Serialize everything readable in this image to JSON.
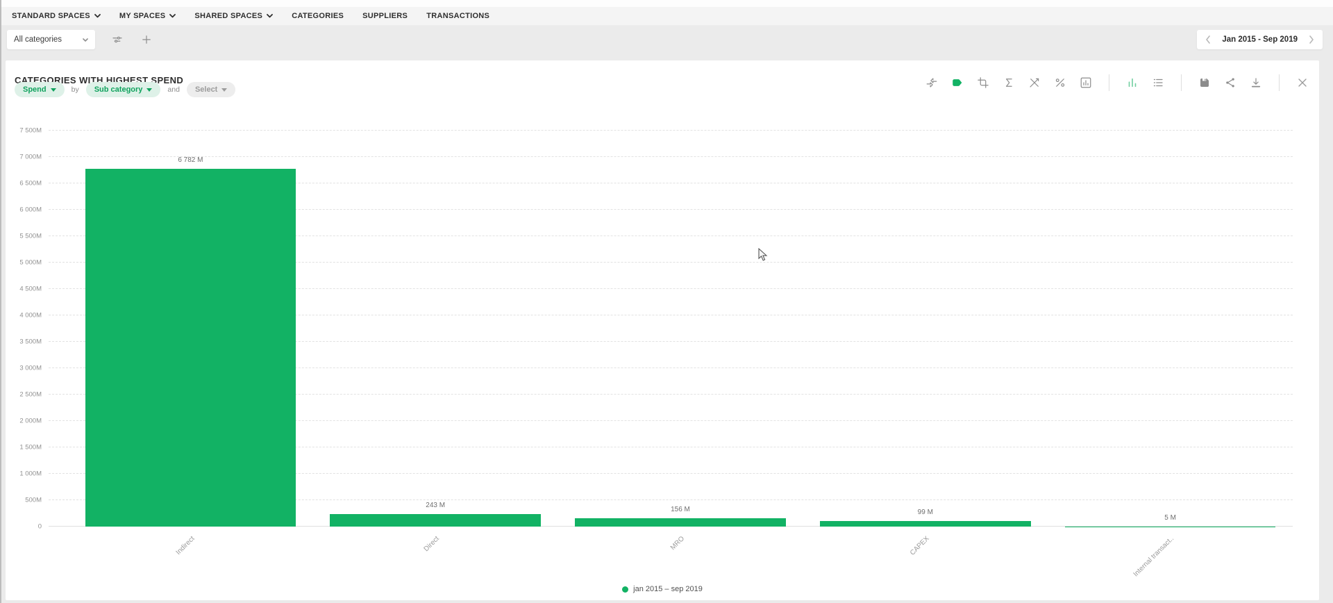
{
  "nav": {
    "items": [
      {
        "label": "STANDARD SPACES",
        "has_dropdown": true
      },
      {
        "label": "MY SPACES",
        "has_dropdown": true
      },
      {
        "label": "SHARED SPACES",
        "has_dropdown": true
      },
      {
        "label": "CATEGORIES",
        "has_dropdown": false
      },
      {
        "label": "SUPPLIERS",
        "has_dropdown": false
      },
      {
        "label": "TRANSACTIONS",
        "has_dropdown": false
      }
    ]
  },
  "filter_bar": {
    "category_filter": {
      "value": "All categories"
    },
    "icons": [
      "filter-icon",
      "add-icon"
    ],
    "date_nav": {
      "range": "Jan 2015 - Sep 2019"
    }
  },
  "widget": {
    "title": "CATEGORIES WITH HIGHEST SPEND",
    "controls": {
      "measure": "Spend",
      "by_label": "by",
      "dimension": "Sub category",
      "and_label": "and",
      "secondary_placeholder": "Select"
    },
    "toolbar_icons": [
      "compare-arrows",
      "label-tag",
      "crop",
      "sum-sigma",
      "axis-scale-off",
      "percent",
      "chart-settings",
      "bar-chart-view",
      "list-view",
      "save",
      "share",
      "download",
      "close"
    ],
    "active_toolbar_icon": "label-tag",
    "active_view_icon": "bar-chart-view"
  },
  "chart_data": {
    "type": "bar",
    "title": "CATEGORIES WITH HIGHEST SPEND",
    "categories": [
      "Indirect",
      "Direct",
      "MRO",
      "CAPEX",
      "Internal transact.."
    ],
    "values": [
      6782,
      243,
      156,
      99,
      5
    ],
    "value_labels": [
      "6 782 M",
      "243 M",
      "156 M",
      "99 M",
      "5 M"
    ],
    "bar_color": "#12b264",
    "xlabel": "",
    "ylabel": "",
    "ylim": [
      0,
      7500
    ],
    "ytick_interval": 500,
    "ytick_labels": [
      "0",
      "500M",
      "1 000M",
      "1 500M",
      "2 000M",
      "2 500M",
      "3 000M",
      "3 500M",
      "4 000M",
      "4 500M",
      "5 000M",
      "5 500M",
      "6 000M",
      "6 500M",
      "7 000M",
      "7 500M"
    ],
    "grid": "horizontal-dashed",
    "legend": {
      "position": "bottom-center",
      "items": [
        {
          "label": "jan 2015 – sep 2019",
          "color": "#12b264"
        }
      ]
    }
  },
  "colors": {
    "accent_green": "#12b264",
    "pill_green_bg": "#def1e8",
    "pill_green_text": "#0fa25d",
    "toolbar_icon_gray": "#8c8c8c",
    "page_bg": "#ebebeb"
  }
}
